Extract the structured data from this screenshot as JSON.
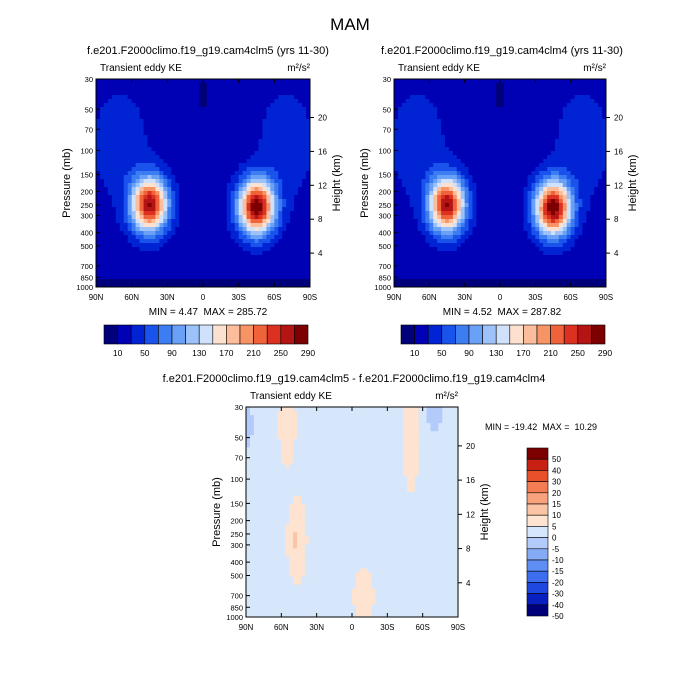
{
  "figure": {
    "title": "MAM"
  },
  "chart_data": [
    {
      "type": "heatmap",
      "title": "f.e201.F2000climo.f19_g19.cam4clm5 (yrs 11-30)",
      "subtitle_left": "Transient eddy KE",
      "units": "m²/s²",
      "ylabel": "Pressure (mb)",
      "ylabel_right": "Height (km)",
      "x_ticks": [
        "90N",
        "60N",
        "30N",
        "0",
        "30S",
        "60S",
        "90S"
      ],
      "y_ticks": [
        "30",
        "50",
        "70",
        "100",
        "150",
        "200",
        "250",
        "300",
        "400",
        "500",
        "700",
        "850",
        "1000"
      ],
      "height_ticks": [
        "4",
        "8",
        "12",
        "16",
        "20"
      ],
      "min": 4.47,
      "max": 285.72,
      "minmax_label": "MIN = 4.47  MAX = 285.72",
      "levels": [
        10,
        30,
        50,
        70,
        90,
        110,
        130,
        150,
        170,
        190,
        210,
        230,
        250,
        270,
        290
      ],
      "levelbar_labels": [
        "10",
        "50",
        "90",
        "130",
        "170",
        "210",
        "250",
        "290"
      ],
      "jets": [
        {
          "lat": 45,
          "p": 250,
          "peak": 270
        },
        {
          "lat": -45,
          "p": 260,
          "peak": 285
        }
      ]
    },
    {
      "type": "heatmap",
      "title": "f.e201.F2000climo.f19_g19.cam4clm4 (yrs 11-30)",
      "subtitle_left": "Transient eddy KE",
      "units": "m²/s²",
      "ylabel": "Pressure (mb)",
      "ylabel_right": "Height (km)",
      "x_ticks": [
        "90N",
        "60N",
        "30N",
        "0",
        "30S",
        "60S",
        "90S"
      ],
      "y_ticks": [
        "30",
        "50",
        "70",
        "100",
        "150",
        "200",
        "250",
        "300",
        "400",
        "500",
        "700",
        "850",
        "1000"
      ],
      "height_ticks": [
        "4",
        "8",
        "12",
        "16",
        "20"
      ],
      "min": 4.52,
      "max": 287.82,
      "minmax_label": "MIN = 4.52  MAX = 287.82",
      "levels": [
        10,
        30,
        50,
        70,
        90,
        110,
        130,
        150,
        170,
        190,
        210,
        230,
        250,
        270,
        290
      ],
      "levelbar_labels": [
        "10",
        "50",
        "90",
        "130",
        "170",
        "210",
        "250",
        "290"
      ],
      "jets": [
        {
          "lat": 45,
          "p": 250,
          "peak": 268
        },
        {
          "lat": -45,
          "p": 265,
          "peak": 287
        }
      ]
    },
    {
      "type": "heatmap",
      "title": "f.e201.F2000climo.f19_g19.cam4clm5 - f.e201.F2000climo.f19_g19.cam4clm4",
      "subtitle_left": "Transient eddy KE",
      "units": "m²/s²",
      "ylabel": "Pressure (mb)",
      "ylabel_right": "Height (km)",
      "x_ticks": [
        "90N",
        "60N",
        "30N",
        "0",
        "30S",
        "60S",
        "90S"
      ],
      "y_ticks": [
        "30",
        "50",
        "70",
        "100",
        "150",
        "200",
        "250",
        "300",
        "400",
        "500",
        "700",
        "850",
        "1000"
      ],
      "height_ticks": [
        "4",
        "8",
        "12",
        "16",
        "20"
      ],
      "min": -19.42,
      "max": 10.29,
      "minmax_label": "MIN = -19.42  MAX =  10.29",
      "levels": [
        -50,
        -40,
        -30,
        -20,
        -15,
        -10,
        -5,
        0,
        5,
        10,
        15,
        20,
        30,
        40,
        50
      ],
      "levelbar_labels": [
        "-50",
        "-40",
        "-30",
        "-20",
        "-15",
        "-10",
        "-5",
        "0",
        "5",
        "10",
        "15",
        "20",
        "30",
        "40",
        "50"
      ]
    }
  ],
  "colors": {
    "ke_palette": [
      "#00007a",
      "#0000b4",
      "#0023d4",
      "#1a52ec",
      "#3d7df2",
      "#6aa0f6",
      "#9cc2f9",
      "#cfe1fb",
      "#fde1cf",
      "#fbbd9c",
      "#f79466",
      "#f0633a",
      "#dc3020",
      "#b51414",
      "#7d0000"
    ],
    "diff_palette": [
      "#00007a",
      "#0a1fc0",
      "#1e48e0",
      "#3d6ef0",
      "#5e8df3",
      "#86abf6",
      "#b3cbfa",
      "#d7e7fb",
      "#fde3d0",
      "#fbc4a4",
      "#f8a37d",
      "#f47c52",
      "#e8502c",
      "#c92014",
      "#7d0000"
    ]
  }
}
